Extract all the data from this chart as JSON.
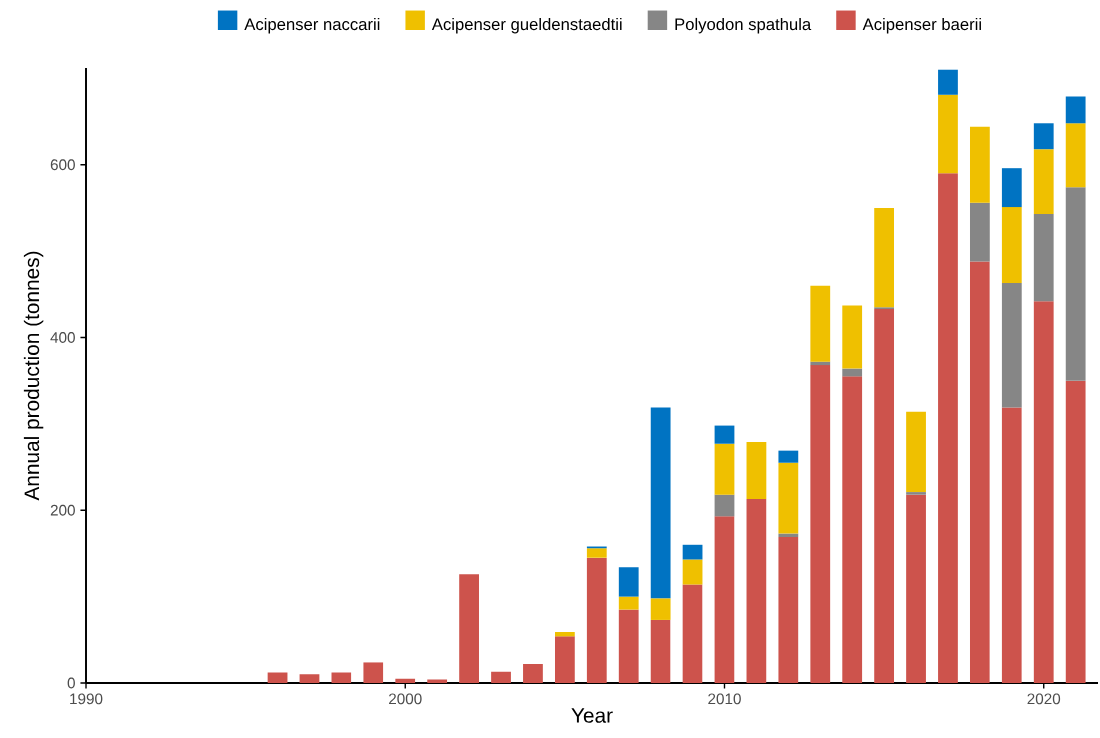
{
  "chart_data": {
    "type": "bar",
    "stacked": true,
    "xlabel": "Year",
    "ylabel": "Annual production (tonnes)",
    "x": [
      1996,
      1997,
      1998,
      1999,
      2000,
      2001,
      2002,
      2003,
      2004,
      2005,
      2006,
      2007,
      2008,
      2009,
      2010,
      2011,
      2012,
      2013,
      2014,
      2015,
      2016,
      2017,
      2018,
      2019,
      2020,
      2021
    ],
    "series": [
      {
        "name": "Acipenser baerii",
        "color": "#cd534c",
        "values": [
          12,
          10,
          12,
          24,
          5,
          4,
          126,
          13,
          22,
          54,
          145,
          85,
          73,
          114,
          193,
          213,
          169,
          368,
          355,
          433,
          218,
          590,
          488,
          319,
          442,
          350
        ]
      },
      {
        "name": "Polyodon spathula",
        "color": "#868686",
        "values": [
          null,
          null,
          null,
          null,
          null,
          null,
          null,
          null,
          null,
          null,
          null,
          null,
          null,
          null,
          25,
          null,
          4,
          4,
          9,
          2,
          3,
          null,
          68,
          144,
          101,
          224
        ]
      },
      {
        "name": "Acipenser gueldenstaedtii",
        "color": "#efc000",
        "values": [
          null,
          null,
          null,
          null,
          null,
          null,
          null,
          null,
          null,
          5,
          11,
          15,
          25,
          29,
          59,
          66,
          82,
          88,
          73,
          115,
          93,
          91,
          88,
          88,
          75,
          74
        ]
      },
      {
        "name": "Acipenser naccarii",
        "color": "#0073c2",
        "values": [
          null,
          null,
          null,
          null,
          null,
          null,
          null,
          null,
          null,
          null,
          2,
          34,
          221,
          17,
          21,
          null,
          14,
          null,
          null,
          null,
          null,
          29,
          null,
          45,
          30,
          31
        ]
      }
    ],
    "xlim": [
      1990,
      2021.7
    ],
    "ylim": [
      0,
      712
    ],
    "xticks": [
      1990,
      2000,
      2010,
      2020
    ],
    "yticks": [
      0,
      200,
      400,
      600
    ],
    "grid": false,
    "legend": "top"
  }
}
